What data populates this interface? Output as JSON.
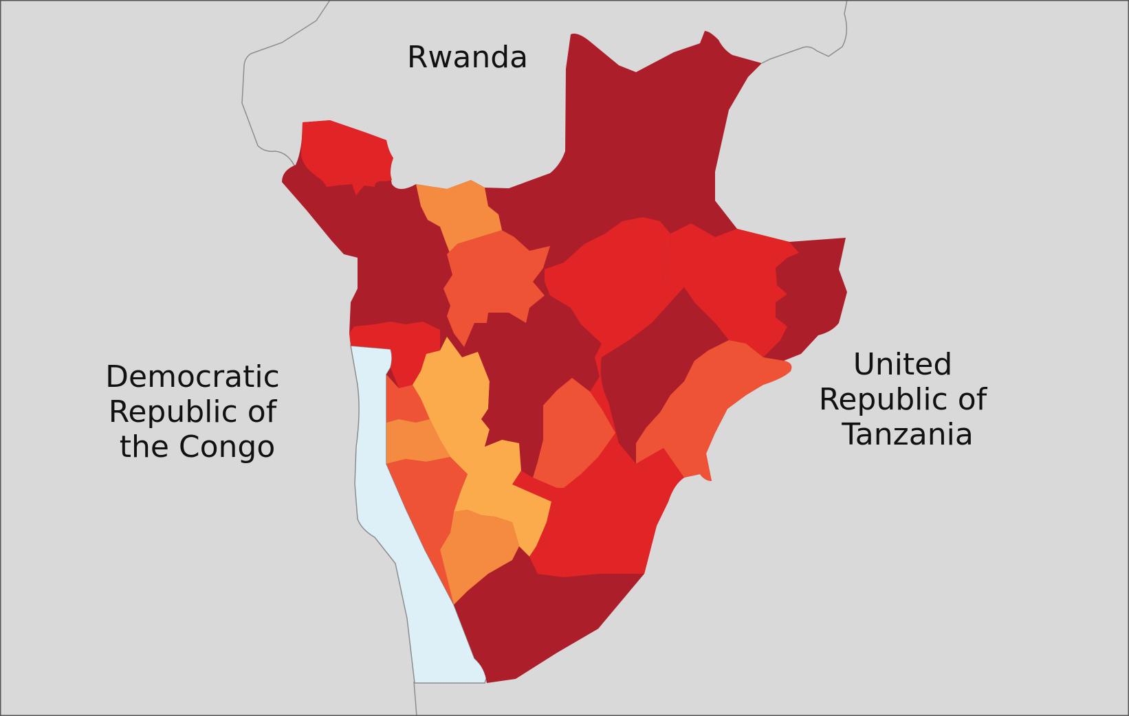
{
  "map": {
    "neighbors": [
      {
        "id": "rwanda",
        "lines": [
          "Rwanda"
        ]
      },
      {
        "id": "drc",
        "lines": [
          "Democratic",
          "Republic of",
          "the Congo"
        ]
      },
      {
        "id": "tanzania",
        "lines": [
          "United",
          "Republic of",
          "Tanzania"
        ]
      }
    ],
    "colors": {
      "background": "#d9d9d9",
      "border": "#8c8c8c",
      "lake": "#ddeff7",
      "dark_red": "#ad1e2b",
      "red": "#e12426",
      "red_orange": "#ef5335",
      "orange": "#f58b40",
      "light_orange": "#fbab4c"
    }
  }
}
